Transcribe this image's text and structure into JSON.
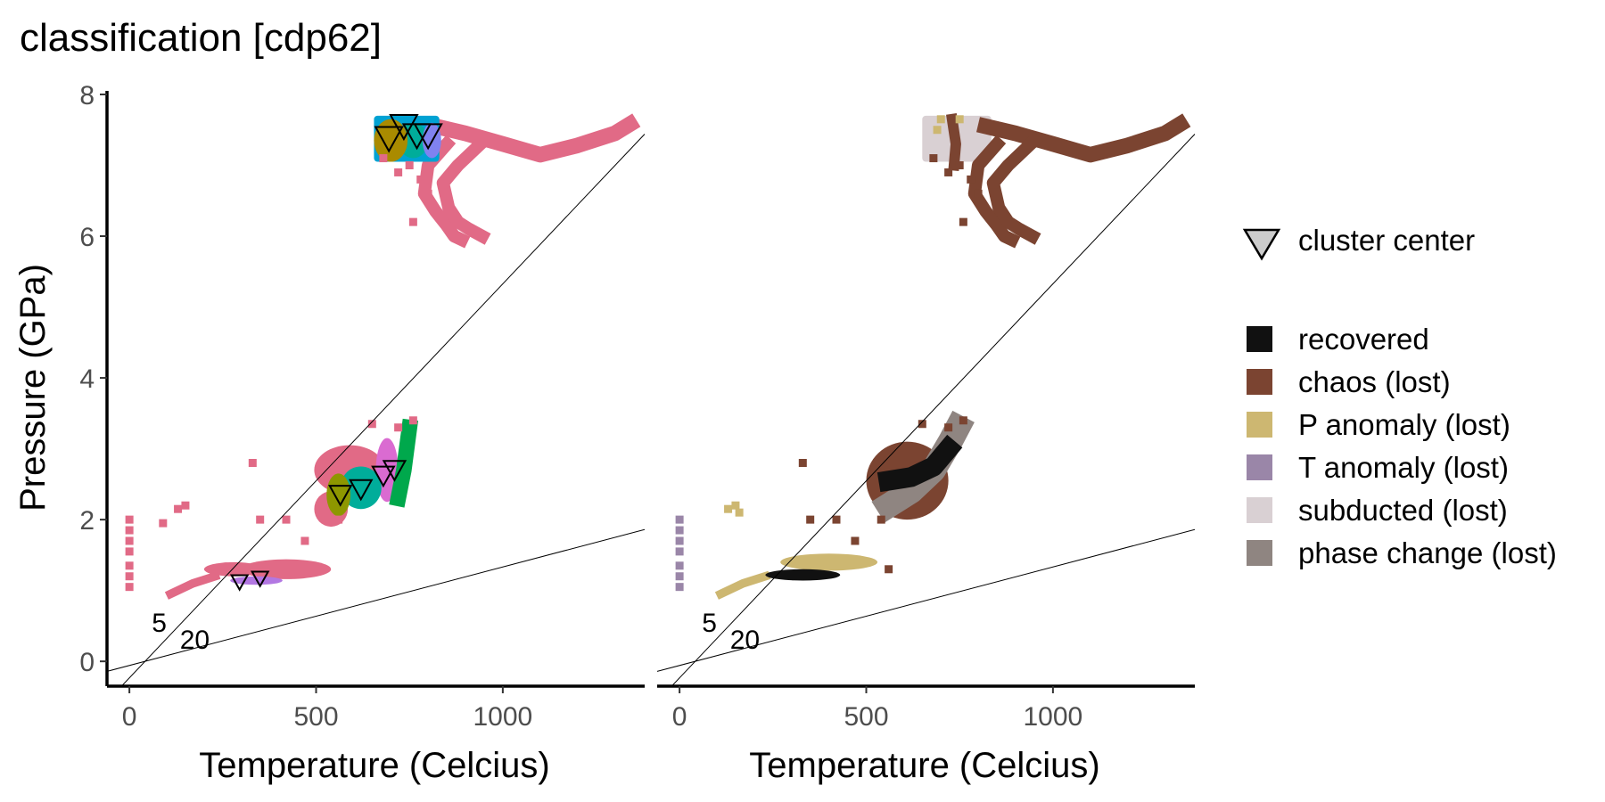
{
  "title": "classification [cdp62]",
  "colors": {
    "pink": "#E16A86",
    "olive": "#AA8B00",
    "olive_green": "#8E9700",
    "teal": "#00AD9A",
    "green": "#00A84C",
    "sky": "#00A2D3",
    "periwinkle": "#8082F0",
    "magenta": "#DA6BD1",
    "purple": "#B277E2",
    "recovered": "#111111",
    "chaos": "#7B4431",
    "p_anomaly": "#CDB771",
    "t_anomaly": "#9A86A8",
    "subducted": "#D9D0D3",
    "phase_change": "#8F8581"
  },
  "chart_data": [
    {
      "type": "scatter",
      "panel": "left",
      "xlabel": "Temperature (Celcius)",
      "ylabel": "Pressure (GPa)",
      "xlim": [
        -60,
        1380
      ],
      "ylim": [
        -0.35,
        8.05
      ],
      "x_ticks": [
        0,
        500,
        1000
      ],
      "y_ticks": [
        0,
        2,
        4,
        6,
        8
      ],
      "grid": false,
      "reference_lines": [
        {
          "label": "5",
          "slope": 0.00556,
          "intercept": -0.233
        },
        {
          "label": "20",
          "slope": 0.00139,
          "intercept": -0.058
        }
      ],
      "regions": [
        {
          "color": "pink",
          "kind": "band",
          "points": [
            [
              820,
              7.55
            ],
            [
              900,
              7.45
            ],
            [
              1000,
              7.3
            ],
            [
              1100,
              7.15
            ],
            [
              1200,
              7.28
            ],
            [
              1300,
              7.45
            ],
            [
              1340,
              7.58
            ]
          ],
          "width": 0.22
        },
        {
          "color": "pink",
          "kind": "band",
          "points": [
            [
              850,
              7.3
            ],
            [
              800,
              7.0
            ],
            [
              790,
              6.6
            ],
            [
              820,
              6.35
            ],
            [
              850,
              6.15
            ],
            [
              870,
              6.0
            ],
            [
              890,
              5.95
            ]
          ],
          "width": 0.18
        },
        {
          "color": "pink",
          "kind": "band",
          "points": [
            [
              950,
              7.35
            ],
            [
              880,
              7.0
            ],
            [
              840,
              6.75
            ],
            [
              855,
              6.4
            ],
            [
              880,
              6.2
            ],
            [
              910,
              6.1
            ],
            [
              945,
              6.0
            ]
          ],
          "width": 0.18
        },
        {
          "color": "pink",
          "kind": "blob",
          "cx": 420,
          "cy": 1.3,
          "rx": 120,
          "ry": 0.14
        },
        {
          "color": "pink",
          "kind": "blob",
          "cx": 280,
          "cy": 1.3,
          "rx": 80,
          "ry": 0.1
        },
        {
          "color": "pink",
          "kind": "band",
          "points": [
            [
              110,
              0.95
            ],
            [
              170,
              1.1
            ],
            [
              230,
              1.2
            ]
          ],
          "width": 0.12
        },
        {
          "color": "pink",
          "kind": "blob",
          "cx": 590,
          "cy": 2.7,
          "rx": 95,
          "ry": 0.35
        },
        {
          "color": "pink",
          "kind": "blob",
          "cx": 540,
          "cy": 2.15,
          "rx": 45,
          "ry": 0.25
        },
        {
          "color": "purple",
          "kind": "blob",
          "cx": 340,
          "cy": 1.14,
          "rx": 70,
          "ry": 0.06
        },
        {
          "color": "magenta",
          "kind": "blob",
          "cx": 690,
          "cy": 2.7,
          "rx": 30,
          "ry": 0.45
        },
        {
          "color": "green",
          "kind": "band",
          "points": [
            [
              720,
              2.3
            ],
            [
              735,
              2.7
            ],
            [
              745,
              3.1
            ],
            [
              750,
              3.3
            ]
          ],
          "width": 0.22
        },
        {
          "color": "teal",
          "kind": "blob",
          "cx": 620,
          "cy": 2.45,
          "rx": 55,
          "ry": 0.3
        },
        {
          "color": "olive_green",
          "kind": "blob",
          "cx": 560,
          "cy": 2.35,
          "rx": 32,
          "ry": 0.3
        },
        {
          "color": "sky",
          "kind": "rect",
          "x0": 655,
          "x1": 830,
          "y0": 7.05,
          "y1": 7.7
        },
        {
          "color": "teal",
          "kind": "blob",
          "cx": 760,
          "cy": 7.35,
          "rx": 40,
          "ry": 0.25
        },
        {
          "color": "periwinkle",
          "kind": "blob",
          "cx": 810,
          "cy": 7.35,
          "rx": 25,
          "ry": 0.25
        },
        {
          "color": "olive",
          "kind": "blob",
          "cx": 700,
          "cy": 7.35,
          "rx": 45,
          "ry": 0.3
        }
      ],
      "scatter_points": [
        {
          "color": "pink",
          "points": [
            [
              0,
              2.0
            ],
            [
              0,
              1.85
            ],
            [
              0,
              1.7
            ],
            [
              0,
              1.55
            ],
            [
              0,
              1.35
            ],
            [
              0,
              1.2
            ],
            [
              0,
              1.05
            ],
            [
              90,
              1.95
            ],
            [
              130,
              2.15
            ],
            [
              150,
              2.2
            ],
            [
              350,
              2.0
            ],
            [
              420,
              2.0
            ],
            [
              330,
              2.8
            ],
            [
              720,
              3.3
            ],
            [
              760,
              3.4
            ],
            [
              650,
              3.35
            ],
            [
              750,
              7.0
            ],
            [
              780,
              6.8
            ],
            [
              800,
              6.6
            ],
            [
              760,
              6.2
            ],
            [
              680,
              7.1
            ],
            [
              720,
              6.9
            ],
            [
              560,
              2.0
            ],
            [
              470,
              1.7
            ]
          ]
        }
      ],
      "cluster_centers": [
        {
          "x": 295,
          "y": 1.12,
          "size": "small"
        },
        {
          "x": 350,
          "y": 1.17,
          "size": "small"
        },
        {
          "x": 565,
          "y": 2.35,
          "size": "medium"
        },
        {
          "x": 620,
          "y": 2.43,
          "size": "medium"
        },
        {
          "x": 680,
          "y": 2.62,
          "size": "medium"
        },
        {
          "x": 710,
          "y": 2.7,
          "size": "medium"
        },
        {
          "x": 695,
          "y": 7.38,
          "size": "large"
        },
        {
          "x": 735,
          "y": 7.55,
          "size": "large"
        },
        {
          "x": 770,
          "y": 7.42,
          "size": "large"
        },
        {
          "x": 800,
          "y": 7.42,
          "size": "large"
        }
      ]
    },
    {
      "type": "scatter",
      "panel": "right",
      "xlabel": "Temperature (Celcius)",
      "xlim": [
        -60,
        1380
      ],
      "ylim": [
        -0.35,
        8.05
      ],
      "x_ticks": [
        0,
        500,
        1000
      ],
      "grid": false,
      "reference_lines": [
        {
          "label": "5",
          "slope": 0.00556,
          "intercept": -0.233
        },
        {
          "label": "20",
          "slope": 0.00139,
          "intercept": -0.058
        }
      ],
      "regions": [
        {
          "color": "subducted",
          "kind": "rect",
          "x0": 650,
          "x1": 835,
          "y0": 7.05,
          "y1": 7.7
        },
        {
          "color": "chaos",
          "kind": "band",
          "points": [
            [
              730,
              7.65
            ],
            [
              740,
              7.3
            ],
            [
              735,
              7.0
            ]
          ],
          "width": 0.15
        },
        {
          "color": "chaos",
          "kind": "band",
          "points": [
            [
              820,
              7.55
            ],
            [
              900,
              7.45
            ],
            [
              1000,
              7.3
            ],
            [
              1100,
              7.15
            ],
            [
              1200,
              7.28
            ],
            [
              1300,
              7.45
            ],
            [
              1340,
              7.58
            ]
          ],
          "width": 0.22
        },
        {
          "color": "chaos",
          "kind": "band",
          "points": [
            [
              850,
              7.3
            ],
            [
              800,
              7.0
            ],
            [
              790,
              6.6
            ],
            [
              820,
              6.35
            ],
            [
              850,
              6.15
            ],
            [
              870,
              6.0
            ],
            [
              890,
              5.95
            ]
          ],
          "width": 0.18
        },
        {
          "color": "chaos",
          "kind": "band",
          "points": [
            [
              950,
              7.35
            ],
            [
              880,
              7.0
            ],
            [
              840,
              6.75
            ],
            [
              855,
              6.4
            ],
            [
              880,
              6.2
            ],
            [
              910,
              6.1
            ],
            [
              945,
              6.0
            ]
          ],
          "width": 0.18
        },
        {
          "color": "p_anomaly",
          "kind": "blob",
          "cx": 400,
          "cy": 1.4,
          "rx": 130,
          "ry": 0.12
        },
        {
          "color": "p_anomaly",
          "kind": "band",
          "points": [
            [
              110,
              0.95
            ],
            [
              170,
              1.1
            ],
            [
              230,
              1.2
            ]
          ],
          "width": 0.12
        },
        {
          "color": "recovered",
          "kind": "blob",
          "cx": 330,
          "cy": 1.22,
          "rx": 100,
          "ry": 0.08
        },
        {
          "color": "chaos",
          "kind": "blob",
          "cx": 610,
          "cy": 2.55,
          "rx": 110,
          "ry": 0.55
        },
        {
          "color": "phase_change",
          "kind": "band",
          "points": [
            [
              560,
              2.2
            ],
            [
              620,
              2.4
            ],
            [
              680,
              2.7
            ],
            [
              725,
              3.1
            ],
            [
              745,
              3.3
            ]
          ],
          "width": 0.35
        },
        {
          "color": "recovered",
          "kind": "band",
          "points": [
            [
              560,
              2.55
            ],
            [
              620,
              2.6
            ],
            [
              680,
              2.75
            ],
            [
              720,
              3.0
            ]
          ],
          "width": 0.28
        }
      ],
      "scatter_points": [
        {
          "color": "t_anomaly",
          "points": [
            [
              0,
              2.0
            ],
            [
              0,
              1.85
            ],
            [
              0,
              1.7
            ],
            [
              0,
              1.55
            ],
            [
              0,
              1.35
            ],
            [
              0,
              1.2
            ],
            [
              0,
              1.05
            ]
          ]
        },
        {
          "color": "p_anomaly",
          "points": [
            [
              130,
              2.15
            ],
            [
              150,
              2.2
            ],
            [
              160,
              2.1
            ]
          ]
        },
        {
          "color": "p_anomaly",
          "points": [
            [
              700,
              7.65
            ],
            [
              750,
              7.65
            ],
            [
              690,
              7.5
            ]
          ]
        },
        {
          "color": "chaos",
          "points": [
            [
              350,
              2.0
            ],
            [
              420,
              2.0
            ],
            [
              330,
              2.8
            ],
            [
              720,
              3.3
            ],
            [
              760,
              3.4
            ],
            [
              650,
              3.35
            ],
            [
              750,
              7.0
            ],
            [
              780,
              6.8
            ],
            [
              800,
              6.6
            ],
            [
              760,
              6.2
            ],
            [
              680,
              7.1
            ],
            [
              720,
              6.9
            ],
            [
              470,
              1.7
            ],
            [
              560,
              1.3
            ],
            [
              540,
              2.0
            ]
          ]
        }
      ]
    }
  ],
  "legend": {
    "cluster_label": "cluster center",
    "items": [
      {
        "label": "recovered",
        "color": "#111111"
      },
      {
        "label": "chaos (lost)",
        "color": "#7B4431"
      },
      {
        "label": "P anomaly (lost)",
        "color": "#CDB771"
      },
      {
        "label": "T anomaly (lost)",
        "color": "#9A86A8"
      },
      {
        "label": "subducted (lost)",
        "color": "#D9D0D3"
      },
      {
        "label": "phase change (lost)",
        "color": "#8F8581"
      }
    ]
  }
}
